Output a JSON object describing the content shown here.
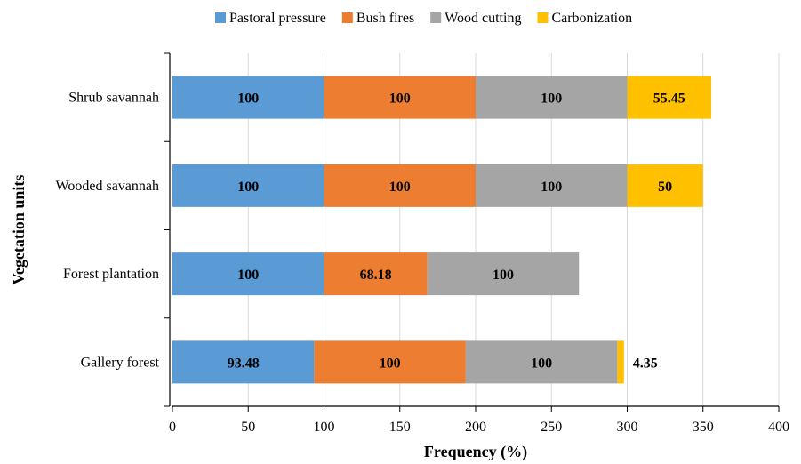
{
  "chart_data": {
    "type": "bar",
    "orientation": "horizontal",
    "stacked": true,
    "title": "",
    "xlabel": "Frequency (%)",
    "ylabel": "Vegetation units",
    "xlim": [
      0,
      400
    ],
    "xticks": [
      0,
      50,
      100,
      150,
      200,
      250,
      300,
      350,
      400
    ],
    "grid": "vertical",
    "legend_position": "top",
    "categories": [
      "Shrub savannah",
      "Wooded savannah",
      "Forest plantation",
      "Gallery forest"
    ],
    "series": [
      {
        "name": "Pastoral pressure",
        "color": "#5B9BD5",
        "values": [
          100,
          100,
          100,
          93.48
        ]
      },
      {
        "name": "Bush fires",
        "color": "#ED7D31",
        "values": [
          100,
          100,
          68.18,
          100
        ]
      },
      {
        "name": "Wood cutting",
        "color": "#A5A5A5",
        "values": [
          100,
          100,
          100,
          100
        ]
      },
      {
        "name": "Carbonization",
        "color": "#FFC000",
        "values": [
          55.45,
          50,
          null,
          4.35
        ]
      }
    ],
    "data_labels": [
      [
        "100",
        "100",
        "100",
        "55.45"
      ],
      [
        "100",
        "100",
        "100",
        "50"
      ],
      [
        "100",
        "68.18",
        "100",
        null
      ],
      [
        "93.48",
        "100",
        "100",
        "4.35"
      ]
    ]
  }
}
